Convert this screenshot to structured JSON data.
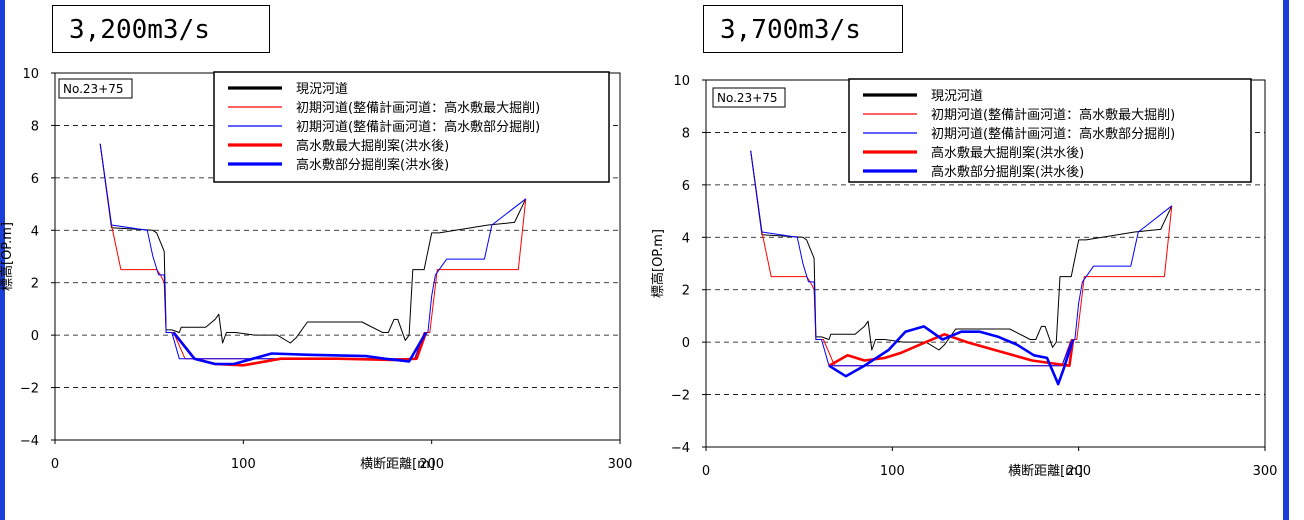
{
  "page": {
    "frame_color": "#1a3fd8"
  },
  "chart_data": [
    {
      "type": "line",
      "flow_label": "3,200m3/s",
      "station_label": "No.23+75",
      "xlabel": "横断距離[m]",
      "ylabel": "標高[OP.m]",
      "xlim": [
        0,
        300
      ],
      "ylim": [
        -4,
        10
      ],
      "xticks": [
        0,
        100,
        200,
        300
      ],
      "yticks": [
        -4,
        -2,
        0,
        2,
        4,
        6,
        8,
        10
      ],
      "grid": "horizontal dashed",
      "legend_position": "top-right",
      "series": [
        {
          "name": "現況河道",
          "color": "#000000",
          "width": "thin",
          "legend_width": "thick",
          "x": [
            24,
            30,
            52,
            54,
            58,
            59,
            62,
            66,
            67,
            70,
            75,
            80,
            85,
            87,
            89,
            91,
            96,
            106,
            118,
            125,
            128,
            134,
            143,
            163,
            174,
            177,
            180,
            182,
            186,
            188,
            190,
            196,
            200,
            204,
            230,
            244,
            250
          ],
          "y": [
            7.3,
            4.1,
            4.0,
            3.9,
            3.2,
            0.2,
            0.2,
            0.1,
            0.3,
            0.3,
            0.3,
            0.3,
            0.6,
            0.8,
            -0.3,
            0.1,
            0.1,
            0.0,
            0.0,
            -0.3,
            -0.1,
            0.5,
            0.5,
            0.5,
            0.1,
            0.1,
            0.6,
            0.6,
            -0.2,
            0.0,
            2.5,
            2.5,
            3.9,
            3.9,
            4.2,
            4.3,
            5.2
          ]
        },
        {
          "name": "初期河道(整備計画河道：高水敷最大掘削)",
          "color": "#ff0000",
          "width": "thin",
          "x": [
            24,
            30,
            35,
            54,
            56,
            58,
            59,
            63,
            69,
            74,
            191,
            196,
            199,
            203,
            220,
            246,
            250
          ],
          "y": [
            7.3,
            4.2,
            2.5,
            2.5,
            2.3,
            2.0,
            0.1,
            0.1,
            -0.9,
            -0.9,
            -0.9,
            0.1,
            0.1,
            2.5,
            2.5,
            2.5,
            5.2
          ]
        },
        {
          "name": "初期河道(整備計画河道：高水敷部分掘削)",
          "color": "#0000ff",
          "width": "thin",
          "x": [
            24,
            30,
            49,
            52,
            55,
            58,
            59,
            62,
            66,
            191,
            196,
            198,
            200,
            202,
            208,
            228,
            232,
            250
          ],
          "y": [
            7.3,
            4.2,
            4.0,
            3.0,
            2.3,
            2.3,
            0.1,
            0.1,
            -0.9,
            -0.9,
            0.0,
            0.1,
            1.5,
            2.3,
            2.9,
            2.9,
            4.2,
            5.2
          ]
        },
        {
          "name": "高水敷最大掘削案(洪水後)",
          "color": "#ff0000",
          "width": "thick",
          "x": [
            63,
            74,
            85,
            100,
            120,
            150,
            180,
            192,
            197
          ],
          "y": [
            0.1,
            -0.9,
            -1.1,
            -1.15,
            -0.9,
            -0.9,
            -0.95,
            -0.9,
            0.1
          ]
        },
        {
          "name": "高水敷部分掘削案(洪水後)",
          "color": "#0000ff",
          "width": "thick",
          "x": [
            63,
            74,
            85,
            95,
            115,
            135,
            165,
            175,
            188,
            197
          ],
          "y": [
            0.1,
            -0.9,
            -1.1,
            -1.1,
            -0.7,
            -0.75,
            -0.8,
            -0.9,
            -1.0,
            0.1
          ]
        }
      ]
    },
    {
      "type": "line",
      "flow_label": "3,700m3/s",
      "station_label": "No.23+75",
      "xlabel": "横断距離[m]",
      "ylabel": "標高[OP.m]",
      "xlim": [
        0,
        300
      ],
      "ylim": [
        -4,
        10
      ],
      "xticks": [
        0,
        100,
        200,
        300
      ],
      "yticks": [
        -4,
        -2,
        0,
        2,
        4,
        6,
        8,
        10
      ],
      "grid": "horizontal dashed",
      "legend_position": "top-right",
      "series": [
        {
          "name": "現況河道",
          "color": "#000000",
          "width": "thin",
          "legend_width": "thick",
          "x": [
            24,
            30,
            52,
            54,
            58,
            59,
            62,
            66,
            67,
            70,
            75,
            80,
            85,
            87,
            89,
            91,
            96,
            106,
            118,
            125,
            128,
            134,
            143,
            163,
            174,
            177,
            180,
            182,
            186,
            188,
            190,
            196,
            200,
            204,
            230,
            244,
            250
          ],
          "y": [
            7.3,
            4.1,
            4.0,
            3.9,
            3.2,
            0.2,
            0.2,
            0.1,
            0.3,
            0.3,
            0.3,
            0.3,
            0.6,
            0.8,
            -0.3,
            0.1,
            0.1,
            0.0,
            0.0,
            -0.3,
            -0.1,
            0.5,
            0.5,
            0.5,
            0.1,
            0.1,
            0.6,
            0.6,
            -0.2,
            0.0,
            2.5,
            2.5,
            3.9,
            3.9,
            4.2,
            4.3,
            5.2
          ]
        },
        {
          "name": "初期河道(整備計画河道：高水敷最大掘削)",
          "color": "#ff0000",
          "width": "thin",
          "x": [
            24,
            30,
            35,
            54,
            56,
            58,
            59,
            63,
            69,
            74,
            191,
            196,
            199,
            203,
            220,
            246,
            250
          ],
          "y": [
            7.3,
            4.2,
            2.5,
            2.5,
            2.3,
            2.0,
            0.1,
            0.1,
            -0.9,
            -0.9,
            -0.9,
            0.1,
            0.1,
            2.5,
            2.5,
            2.5,
            5.2
          ]
        },
        {
          "name": "初期河道(整備計画河道：高水敷部分掘削)",
          "color": "#0000ff",
          "width": "thin",
          "x": [
            24,
            30,
            49,
            52,
            55,
            58,
            59,
            62,
            66,
            191,
            196,
            198,
            200,
            202,
            208,
            228,
            232,
            250
          ],
          "y": [
            7.3,
            4.2,
            4.0,
            3.0,
            2.3,
            2.3,
            0.1,
            0.1,
            -0.9,
            -0.9,
            0.0,
            0.1,
            1.5,
            2.3,
            2.9,
            2.9,
            4.2,
            5.2
          ]
        },
        {
          "name": "高水敷最大掘削案(洪水後)",
          "color": "#ff0000",
          "width": "thick",
          "x": [
            66,
            76,
            85,
            96,
            105,
            118,
            128,
            140,
            155,
            165,
            175,
            185,
            195,
            197
          ],
          "y": [
            -0.9,
            -0.5,
            -0.7,
            -0.6,
            -0.4,
            0.0,
            0.3,
            0.0,
            -0.3,
            -0.5,
            -0.7,
            -0.8,
            -0.9,
            0.1
          ]
        },
        {
          "name": "高水敷部分掘削案(洪水後)",
          "color": "#0000ff",
          "width": "thick",
          "x": [
            66,
            75,
            85,
            98,
            107,
            117,
            127,
            137,
            147,
            157,
            167,
            176,
            183,
            189,
            192,
            197
          ],
          "y": [
            -0.9,
            -1.3,
            -0.9,
            -0.3,
            0.4,
            0.6,
            0.1,
            0.4,
            0.4,
            0.2,
            -0.1,
            -0.5,
            -0.6,
            -1.6,
            -1.0,
            0.1
          ]
        }
      ]
    }
  ]
}
